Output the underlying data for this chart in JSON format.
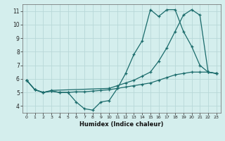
{
  "xlabel": "Humidex (Indice chaleur)",
  "background_color": "#d4eeed",
  "grid_color": "#b8d8d8",
  "line_color": "#1a6b6b",
  "xlim": [
    -0.5,
    23.5
  ],
  "ylim": [
    3.5,
    11.5
  ],
  "xticks": [
    0,
    1,
    2,
    3,
    4,
    5,
    6,
    7,
    8,
    9,
    10,
    11,
    12,
    13,
    14,
    15,
    16,
    17,
    18,
    19,
    20,
    21,
    22,
    23
  ],
  "yticks": [
    4,
    5,
    6,
    7,
    8,
    9,
    10,
    11
  ],
  "line1_x": [
    0,
    1,
    2,
    3,
    4,
    5,
    6,
    7,
    8,
    9,
    10,
    11,
    12,
    13,
    14,
    15,
    16,
    17,
    18,
    19,
    20,
    21,
    22,
    23
  ],
  "line1_y": [
    5.9,
    5.2,
    5.0,
    5.1,
    5.0,
    5.0,
    4.3,
    3.8,
    3.7,
    4.3,
    4.4,
    5.3,
    6.4,
    7.8,
    8.8,
    11.1,
    10.6,
    11.1,
    11.1,
    9.5,
    8.4,
    7.0,
    6.5,
    6.4
  ],
  "line2_x": [
    0,
    1,
    2,
    3,
    4,
    5,
    6,
    7,
    8,
    9,
    10,
    11,
    12,
    13,
    14,
    15,
    16,
    17,
    18,
    19,
    20,
    21,
    22,
    23
  ],
  "line2_y": [
    5.9,
    5.2,
    5.0,
    5.1,
    5.0,
    5.0,
    5.05,
    5.05,
    5.1,
    5.15,
    5.2,
    5.3,
    5.4,
    5.5,
    5.6,
    5.7,
    5.9,
    6.1,
    6.3,
    6.4,
    6.5,
    6.5,
    6.5,
    6.4
  ],
  "line3_x": [
    0,
    1,
    2,
    3,
    10,
    11,
    12,
    13,
    14,
    15,
    16,
    17,
    18,
    19,
    20,
    21,
    22,
    23
  ],
  "line3_y": [
    5.9,
    5.2,
    5.0,
    5.15,
    5.3,
    5.5,
    5.7,
    5.9,
    6.2,
    6.5,
    7.3,
    8.3,
    9.5,
    10.7,
    11.1,
    10.7,
    6.5,
    6.4
  ]
}
